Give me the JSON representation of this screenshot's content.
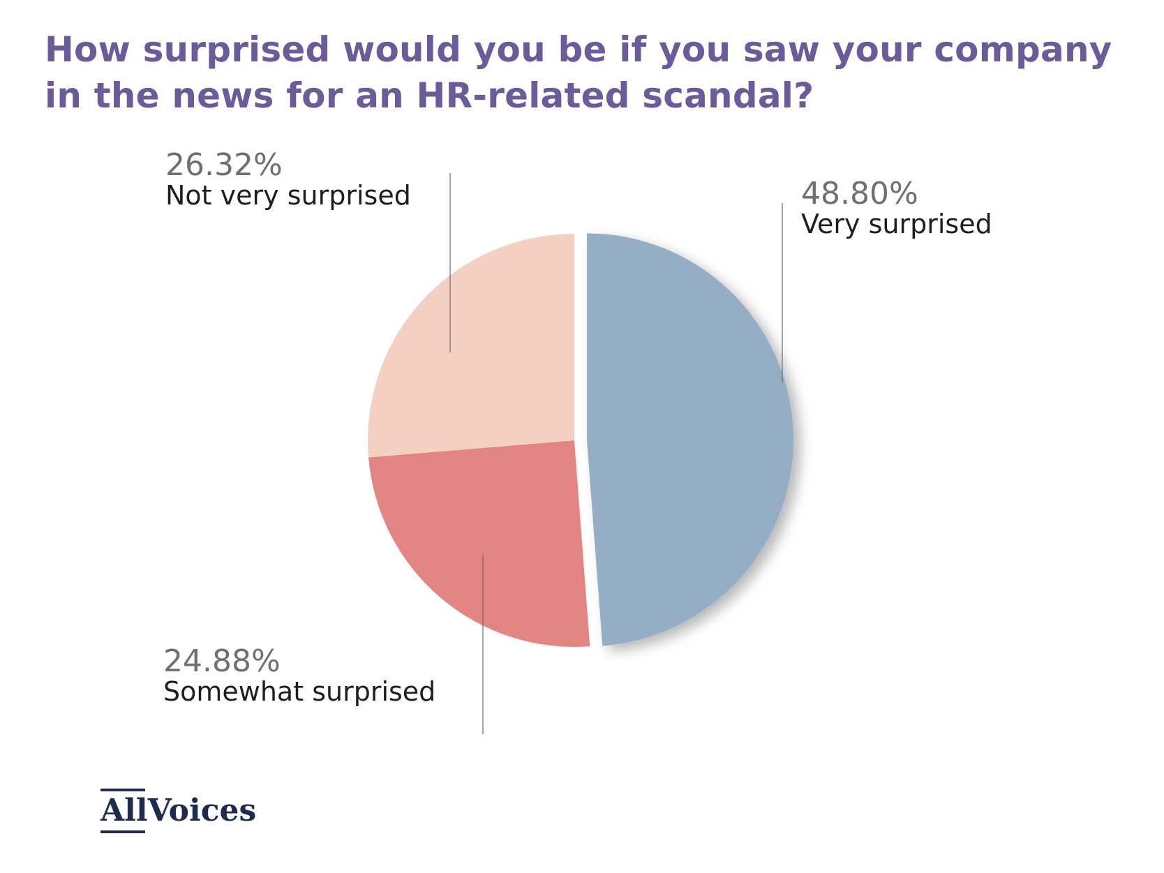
{
  "chart_data": {
    "type": "pie",
    "title": "How surprised would you be if you saw your company in the news for an HR-related scandal?",
    "slices": [
      {
        "label": "Very surprised",
        "value": 48.8,
        "value_label": "48.80%",
        "color": "#95aec6"
      },
      {
        "label": "Somewhat surprised",
        "value": 24.88,
        "value_label": "24.88%",
        "color": "#e38683"
      },
      {
        "label": "Not very surprised",
        "value": 26.32,
        "value_label": "26.32%",
        "color": "#f3d0c2"
      }
    ],
    "start_angle": "12 o'clock",
    "direction": "clockwise",
    "legend": "none",
    "largest_slice_exploded": true
  },
  "brand": {
    "logo_text_1": "All",
    "logo_text_2": "Voices"
  }
}
